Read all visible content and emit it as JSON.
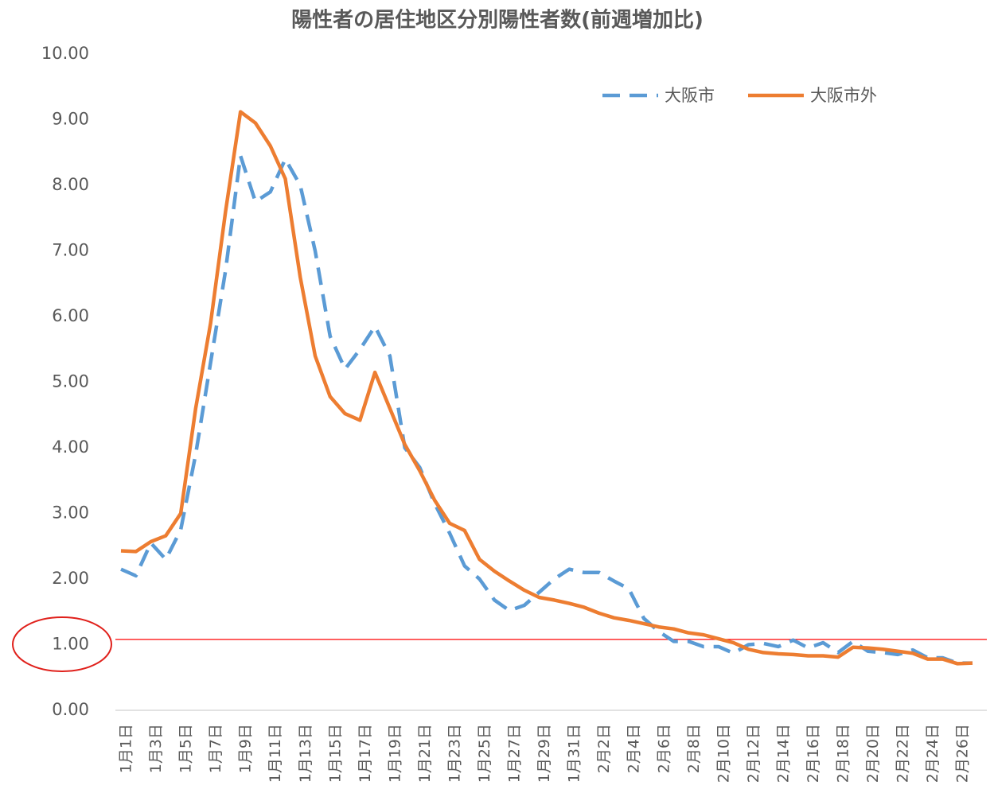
{
  "chart_data": {
    "type": "line",
    "title": "陽性者の居住地区分別陽性者数(前週増加比)",
    "categories": [
      "1月1日",
      null,
      "1月3日",
      null,
      "1月5日",
      null,
      "1月7日",
      null,
      "1月9日",
      null,
      "1月11日",
      null,
      "1月13日",
      null,
      "1月15日",
      null,
      "1月17日",
      null,
      "1月19日",
      null,
      "1月21日",
      null,
      "1月23日",
      null,
      "1月25日",
      null,
      "1月27日",
      null,
      "1月29日",
      null,
      "1月31日",
      null,
      "2月2日",
      null,
      "2月4日",
      null,
      "2月6日",
      null,
      "2月8日",
      null,
      "2月10日",
      null,
      "2月12日",
      null,
      "2月14日",
      null,
      "2月16日",
      null,
      "2月18日",
      null,
      "2月20日",
      null,
      "2月22日",
      null,
      "2月24日",
      null,
      "2月26日",
      null
    ],
    "series": [
      {
        "name": "大阪市",
        "color": "#5b9bd5",
        "dash": true,
        "values": [
          2.15,
          2.05,
          2.55,
          2.3,
          2.75,
          3.9,
          5.3,
          6.7,
          8.45,
          7.75,
          7.9,
          8.4,
          8.0,
          7.0,
          5.7,
          5.2,
          5.5,
          5.85,
          5.4,
          4.0,
          3.7,
          3.15,
          2.7,
          2.2,
          2.0,
          1.68,
          1.52,
          1.6,
          1.8,
          2.0,
          2.15,
          2.1,
          2.1,
          1.97,
          1.85,
          1.4,
          1.2,
          1.05,
          1.05,
          0.97,
          0.97,
          0.87,
          1.0,
          1.02,
          0.97,
          1.07,
          0.95,
          1.03,
          0.88,
          1.05,
          0.9,
          0.88,
          0.85,
          0.92,
          0.8,
          0.8,
          0.72,
          0.72
        ]
      },
      {
        "name": "大阪市外",
        "color": "#ed7d31",
        "dash": false,
        "values": [
          2.43,
          2.42,
          2.57,
          2.66,
          3.0,
          4.6,
          5.9,
          7.6,
          9.12,
          8.95,
          8.6,
          8.1,
          6.6,
          5.4,
          4.78,
          4.52,
          4.42,
          5.15,
          4.6,
          4.05,
          3.65,
          3.2,
          2.85,
          2.74,
          2.3,
          2.12,
          1.97,
          1.83,
          1.72,
          1.68,
          1.63,
          1.57,
          1.48,
          1.41,
          1.37,
          1.32,
          1.27,
          1.24,
          1.18,
          1.15,
          1.09,
          1.03,
          0.93,
          0.88,
          0.86,
          0.85,
          0.83,
          0.83,
          0.81,
          0.96,
          0.95,
          0.93,
          0.9,
          0.87,
          0.78,
          0.78,
          0.71,
          0.72
        ]
      }
    ],
    "ylim": [
      0,
      10
    ],
    "yticks": [
      {
        "value": 0,
        "label": "0.00"
      },
      {
        "value": 1,
        "label": "1.00"
      },
      {
        "value": 2,
        "label": "2.00"
      },
      {
        "value": 3,
        "label": "3.00"
      },
      {
        "value": 4,
        "label": "4.00"
      },
      {
        "value": 5,
        "label": "5.00"
      },
      {
        "value": 6,
        "label": "6.00"
      },
      {
        "value": 7,
        "label": "7.00"
      },
      {
        "value": 8,
        "label": "8.00"
      },
      {
        "value": 9,
        "label": "9.00"
      },
      {
        "value": 10,
        "label": "10.00"
      }
    ],
    "reference_line": {
      "value": 1.08,
      "color": "#ff0000"
    },
    "grid": false,
    "legend": "top-right"
  }
}
